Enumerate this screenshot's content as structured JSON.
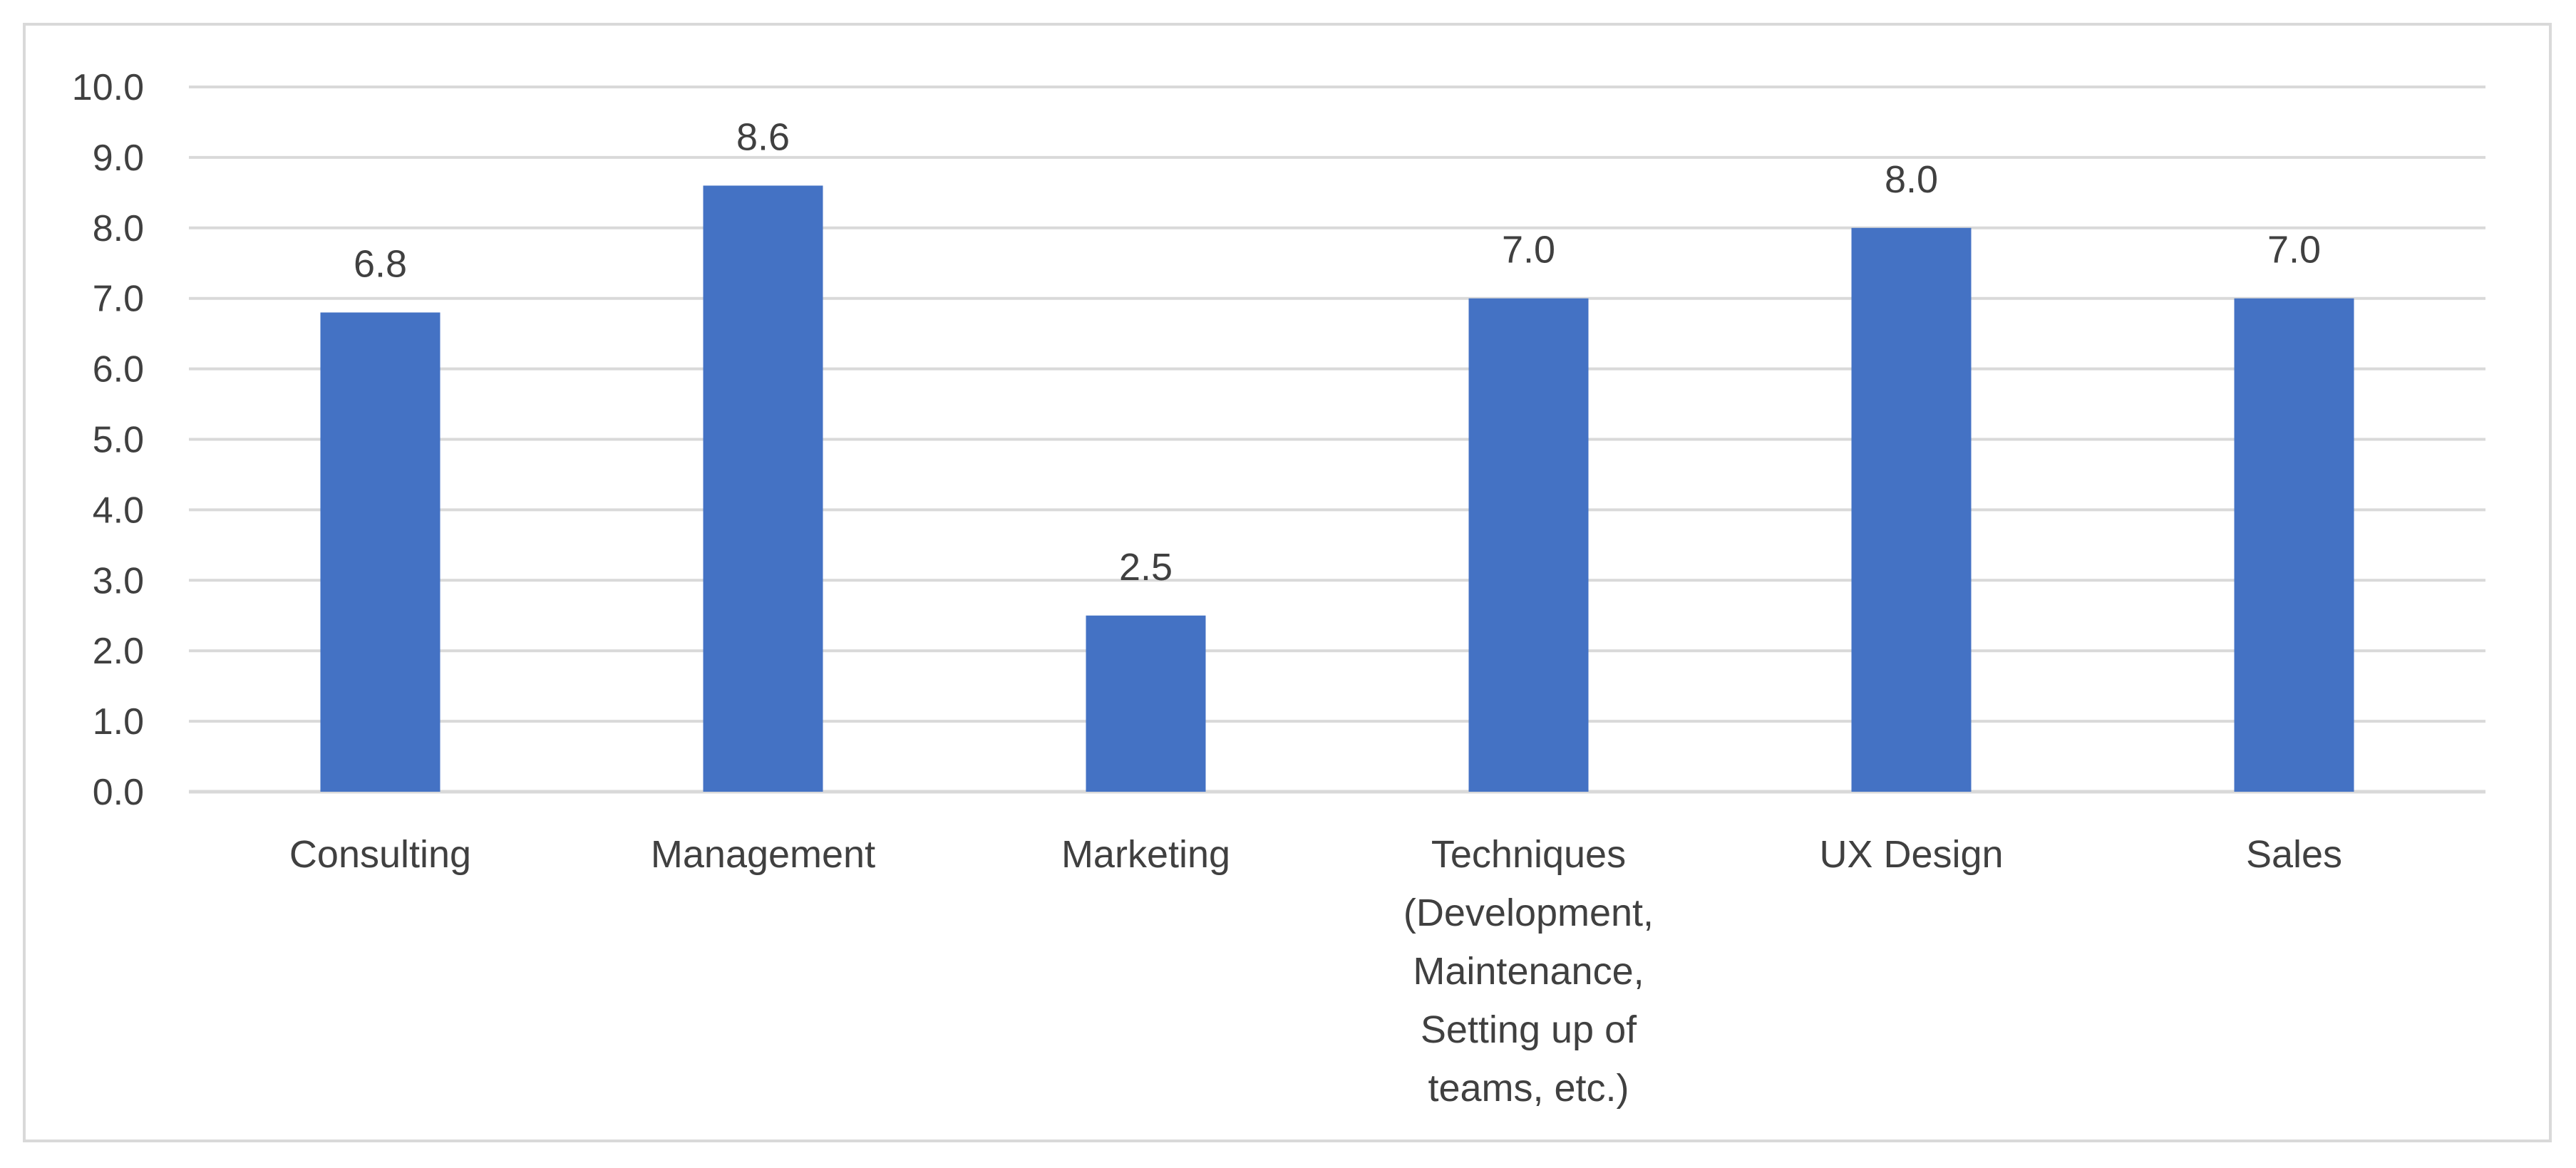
{
  "chart_data": {
    "type": "bar",
    "title": "",
    "xlabel": "",
    "ylabel": "",
    "categories": [
      [
        "Consulting"
      ],
      [
        "Management"
      ],
      [
        "Marketing"
      ],
      [
        "Techniques",
        "(Development,",
        "Maintenance,",
        "Setting up of",
        "teams, etc.)"
      ],
      [
        "UX Design"
      ],
      [
        "Sales"
      ]
    ],
    "values": [
      6.8,
      8.6,
      2.5,
      7.0,
      8.0,
      7.0
    ],
    "value_labels": [
      "6.8",
      "8.6",
      "2.5",
      "7.0",
      "8.0",
      "7.0"
    ],
    "ylim": [
      0,
      10
    ],
    "yticks": [
      0,
      1,
      2,
      3,
      4,
      5,
      6,
      7,
      8,
      9,
      10
    ],
    "ytick_labels": [
      "0.0",
      "1.0",
      "2.0",
      "3.0",
      "4.0",
      "5.0",
      "6.0",
      "7.0",
      "8.0",
      "9.0",
      "10.0"
    ],
    "grid": true,
    "legend": "none",
    "colors": {
      "bar": "#4472C4",
      "grid": "#d9d9d9",
      "text": "#404040",
      "frame": "#d9d9d9"
    }
  }
}
